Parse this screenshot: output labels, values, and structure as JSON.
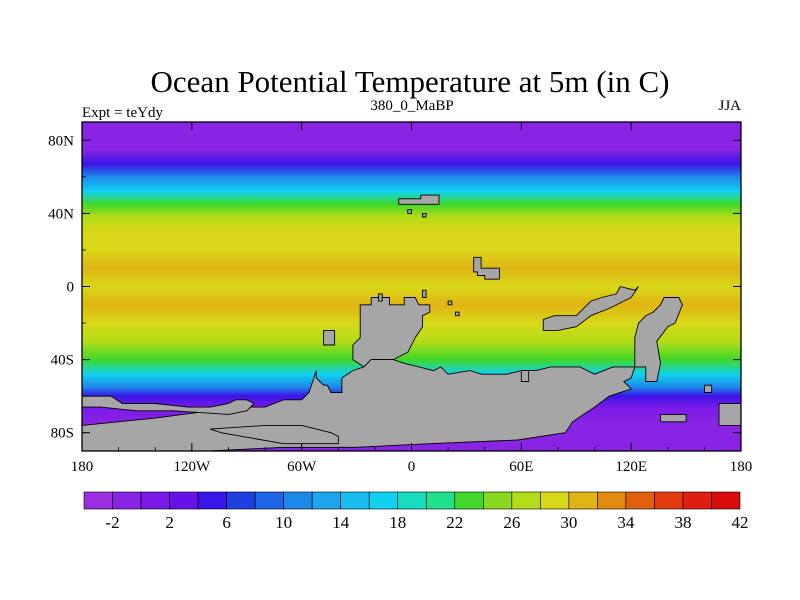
{
  "chart_data": {
    "type": "heatmap",
    "title": "Ocean Potential Temperature at 5m (in C)",
    "subtitle_left": "Expt = teYdy",
    "subtitle_center": "380_0_MaBP",
    "subtitle_right": "JJA",
    "x_ticks": [
      {
        "value": -180,
        "label": "180"
      },
      {
        "value": -120,
        "label": "120W"
      },
      {
        "value": -60,
        "label": "60W"
      },
      {
        "value": 0,
        "label": "0"
      },
      {
        "value": 60,
        "label": "60E"
      },
      {
        "value": 120,
        "label": "120E"
      },
      {
        "value": 180,
        "label": "180"
      }
    ],
    "y_ticks": [
      {
        "value": 80,
        "label": "80N"
      },
      {
        "value": 40,
        "label": "40N"
      },
      {
        "value": 0,
        "label": "0"
      },
      {
        "value": -40,
        "label": "40S"
      },
      {
        "value": -80,
        "label": "80S"
      }
    ],
    "xlim": [
      -180,
      180
    ],
    "ylim": [
      -90,
      90
    ],
    "colorbar": {
      "levels": [
        -4,
        -2,
        0,
        2,
        4,
        6,
        8,
        10,
        12,
        14,
        16,
        18,
        20,
        22,
        24,
        26,
        28,
        30,
        32,
        34,
        36,
        38,
        40,
        42
      ],
      "labels": [
        {
          "value": -2,
          "label": "-2"
        },
        {
          "value": 2,
          "label": "2"
        },
        {
          "value": 6,
          "label": "6"
        },
        {
          "value": 10,
          "label": "10"
        },
        {
          "value": 14,
          "label": "14"
        },
        {
          "value": 18,
          "label": "18"
        },
        {
          "value": 22,
          "label": "22"
        },
        {
          "value": 26,
          "label": "26"
        },
        {
          "value": 30,
          "label": "30"
        },
        {
          "value": 34,
          "label": "34"
        },
        {
          "value": 38,
          "label": "38"
        },
        {
          "value": 42,
          "label": "42"
        }
      ],
      "colors": [
        "#9a2ee0",
        "#8a24e4",
        "#7a1ae8",
        "#6610ea",
        "#3a14e8",
        "#1e40e0",
        "#1e64e6",
        "#1e88ea",
        "#1ea4ec",
        "#18bcee",
        "#10d2f0",
        "#18dcc0",
        "#20e08a",
        "#40d82a",
        "#88d820",
        "#b4dc18",
        "#d8d818",
        "#e0b414",
        "#e08a10",
        "#e06010",
        "#e03c10",
        "#e01e10",
        "#d80c0c"
      ]
    },
    "zonal_mean_temperature": [
      {
        "lat": 90,
        "t": -2
      },
      {
        "lat": 75,
        "t": -1
      },
      {
        "lat": 67,
        "t": 4
      },
      {
        "lat": 60,
        "t": 10
      },
      {
        "lat": 52,
        "t": 16
      },
      {
        "lat": 45,
        "t": 22
      },
      {
        "lat": 38,
        "t": 26
      },
      {
        "lat": 30,
        "t": 28
      },
      {
        "lat": 20,
        "t": 29
      },
      {
        "lat": 10,
        "t": 30
      },
      {
        "lat": 0,
        "t": 29
      },
      {
        "lat": -10,
        "t": 30
      },
      {
        "lat": -20,
        "t": 29
      },
      {
        "lat": -30,
        "t": 26
      },
      {
        "lat": -40,
        "t": 22
      },
      {
        "lat": -48,
        "t": 16
      },
      {
        "lat": -55,
        "t": 10
      },
      {
        "lat": -60,
        "t": 4
      },
      {
        "lat": -66,
        "t": 0
      },
      {
        "lat": -75,
        "t": -2
      },
      {
        "lat": -90,
        "t": -2
      }
    ],
    "land_masks": [
      [
        [
          -7,
          45
        ],
        [
          15,
          45
        ],
        [
          15,
          50
        ],
        [
          5,
          50
        ],
        [
          5,
          48
        ],
        [
          -7,
          48
        ]
      ],
      [
        [
          -2,
          40
        ],
        [
          0,
          40
        ],
        [
          0,
          42
        ],
        [
          -2,
          42
        ]
      ],
      [
        [
          6,
          38
        ],
        [
          8,
          38
        ],
        [
          8,
          40
        ],
        [
          6,
          40
        ]
      ],
      [
        [
          34,
          8
        ],
        [
          36,
          8
        ],
        [
          36,
          6
        ],
        [
          40,
          6
        ],
        [
          40,
          4
        ],
        [
          48,
          4
        ],
        [
          48,
          10
        ],
        [
          38,
          10
        ],
        [
          38,
          16
        ],
        [
          34,
          16
        ]
      ],
      [
        [
          -28,
          -16
        ],
        [
          -28,
          -10
        ],
        [
          -22,
          -10
        ],
        [
          -22,
          -6
        ],
        [
          -12,
          -6
        ],
        [
          -12,
          -10
        ],
        [
          -4,
          -10
        ],
        [
          -4,
          -6
        ],
        [
          2,
          -6
        ],
        [
          4,
          -10
        ],
        [
          10,
          -10
        ],
        [
          10,
          -14
        ],
        [
          6,
          -16
        ],
        [
          6,
          -22
        ],
        [
          2,
          -28
        ],
        [
          -2,
          -36
        ],
        [
          -10,
          -40
        ],
        [
          -22,
          -40
        ],
        [
          -26,
          -44
        ],
        [
          -32,
          -40
        ],
        [
          -32,
          -32
        ],
        [
          -28,
          -28
        ]
      ],
      [
        [
          -48,
          -24
        ],
        [
          -42,
          -24
        ],
        [
          -42,
          -32
        ],
        [
          -48,
          -32
        ]
      ],
      [
        [
          -18,
          -4
        ],
        [
          -16,
          -4
        ],
        [
          -16,
          -8
        ],
        [
          -18,
          -8
        ]
      ],
      [
        [
          6,
          -2
        ],
        [
          8,
          -2
        ],
        [
          8,
          -6
        ],
        [
          6,
          -6
        ]
      ],
      [
        [
          20,
          -8
        ],
        [
          22,
          -8
        ],
        [
          22,
          -10
        ],
        [
          20,
          -10
        ]
      ],
      [
        [
          24,
          -14
        ],
        [
          26,
          -14
        ],
        [
          26,
          -16
        ],
        [
          24,
          -16
        ]
      ],
      [
        [
          -52,
          -46
        ],
        [
          -52,
          -50
        ],
        [
          -48,
          -54
        ],
        [
          -46,
          -54
        ],
        [
          -44,
          -58
        ],
        [
          -38,
          -58
        ],
        [
          -38,
          -50
        ],
        [
          -32,
          -46
        ],
        [
          -26,
          -44
        ],
        [
          -22,
          -40
        ],
        [
          -10,
          -40
        ],
        [
          -4,
          -42
        ],
        [
          4,
          -44
        ],
        [
          12,
          -46
        ],
        [
          16,
          -44
        ],
        [
          20,
          -48
        ],
        [
          32,
          -46
        ],
        [
          38,
          -48
        ],
        [
          52,
          -48
        ],
        [
          60,
          -46
        ],
        [
          68,
          -46
        ],
        [
          76,
          -44
        ],
        [
          92,
          -44
        ],
        [
          100,
          -48
        ],
        [
          110,
          -44
        ],
        [
          128,
          -44
        ],
        [
          128,
          -52
        ],
        [
          134,
          -52
        ],
        [
          136,
          -42
        ],
        [
          134,
          -30
        ],
        [
          140,
          -22
        ],
        [
          144,
          -20
        ],
        [
          148,
          -10
        ],
        [
          146,
          -6
        ],
        [
          138,
          -6
        ],
        [
          136,
          -10
        ],
        [
          132,
          -14
        ],
        [
          128,
          -16
        ],
        [
          124,
          -20
        ],
        [
          122,
          -28
        ],
        [
          122,
          -44
        ],
        [
          120,
          -50
        ],
        [
          116,
          -52
        ],
        [
          120,
          -56
        ],
        [
          108,
          -60
        ],
        [
          100,
          -66
        ],
        [
          94,
          -70
        ],
        [
          88,
          -74
        ],
        [
          84,
          -80
        ],
        [
          58,
          -84
        ],
        [
          10,
          -86
        ],
        [
          -30,
          -88
        ],
        [
          -70,
          -88
        ],
        [
          -110,
          -90
        ],
        [
          -180,
          -90
        ],
        [
          -180,
          -76
        ],
        [
          -140,
          -72
        ],
        [
          -110,
          -68
        ],
        [
          -100,
          -66
        ],
        [
          -80,
          -66
        ],
        [
          -70,
          -62
        ],
        [
          -60,
          -62
        ],
        [
          -56,
          -58
        ]
      ],
      [
        [
          60,
          -46
        ],
        [
          64,
          -46
        ],
        [
          64,
          -52
        ],
        [
          60,
          -52
        ]
      ],
      [
        [
          78,
          -16
        ],
        [
          90,
          -16
        ],
        [
          98,
          -8
        ],
        [
          104,
          -6
        ],
        [
          112,
          -4
        ],
        [
          114,
          0
        ],
        [
          122,
          -2
        ],
        [
          124,
          0
        ],
        [
          120,
          -6
        ],
        [
          116,
          -8
        ],
        [
          108,
          -12
        ],
        [
          98,
          -16
        ],
        [
          90,
          -22
        ],
        [
          80,
          -24
        ],
        [
          72,
          -24
        ],
        [
          72,
          -18
        ]
      ],
      [
        [
          -180,
          -60
        ],
        [
          -164,
          -60
        ],
        [
          -158,
          -64
        ],
        [
          -140,
          -64
        ],
        [
          -122,
          -66
        ],
        [
          -110,
          -66
        ],
        [
          -100,
          -64
        ],
        [
          -96,
          -62
        ],
        [
          -90,
          -62
        ],
        [
          -86,
          -64
        ],
        [
          -90,
          -68
        ],
        [
          -100,
          -70
        ],
        [
          -130,
          -68
        ],
        [
          -150,
          -68
        ],
        [
          -170,
          -66
        ],
        [
          -180,
          -66
        ]
      ],
      [
        [
          -80,
          -76
        ],
        [
          -60,
          -76
        ],
        [
          -44,
          -80
        ],
        [
          -40,
          -82
        ],
        [
          -40,
          -86
        ],
        [
          -70,
          -86
        ],
        [
          -104,
          -80
        ],
        [
          -110,
          -78
        ]
      ],
      [
        [
          160,
          -54
        ],
        [
          164,
          -54
        ],
        [
          164,
          -58
        ],
        [
          160,
          -58
        ]
      ],
      [
        [
          168,
          -64
        ],
        [
          180,
          -64
        ],
        [
          180,
          -76
        ],
        [
          168,
          -76
        ]
      ],
      [
        [
          136,
          -70
        ],
        [
          150,
          -70
        ],
        [
          150,
          -74
        ],
        [
          136,
          -74
        ]
      ]
    ]
  }
}
